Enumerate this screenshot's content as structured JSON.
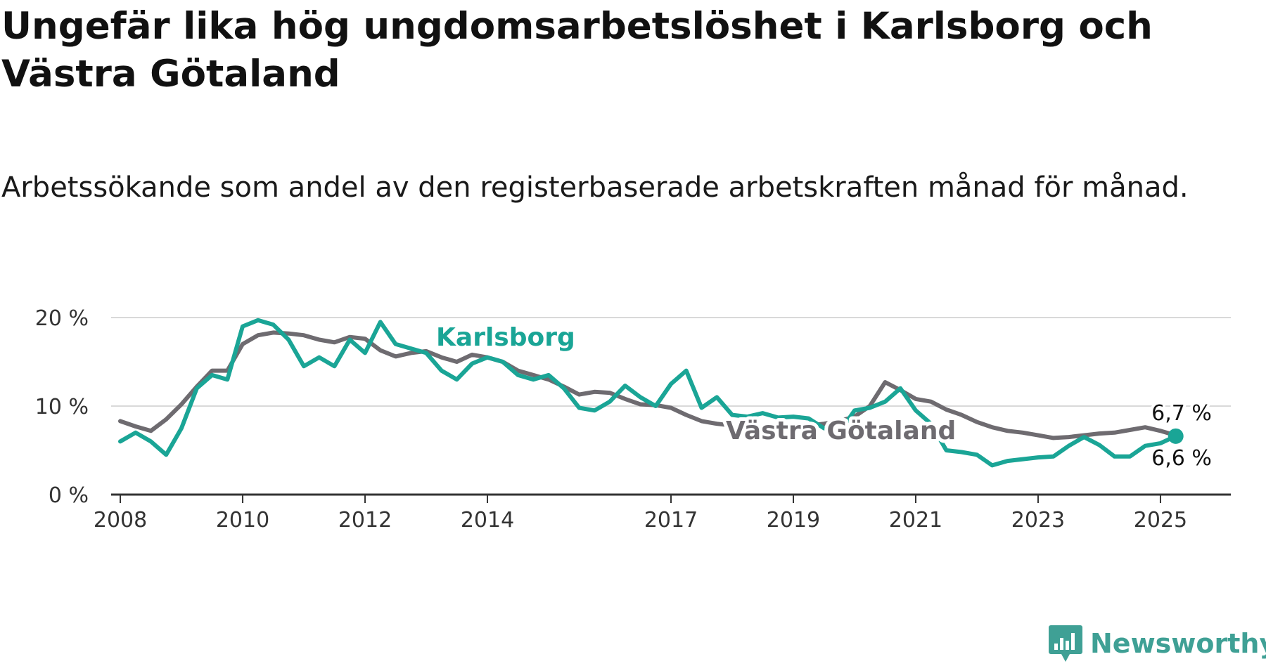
{
  "title": "Ungefär lika hög ungdomsarbetslöshet i Karlsborg och Västra Götaland",
  "subtitle": "Arbetssökande som andel av den registerbaserade arbetskraften månad för månad.",
  "brand": {
    "name": "Newsworthy",
    "color": "#3fa095",
    "icon": "bar-chart-icon"
  },
  "colors": {
    "karlsborg": "#1aa596",
    "vastra_gotaland": "#6e6b70",
    "grid": "#d9d9d9",
    "axis": "#333333"
  },
  "chart_data": {
    "type": "line",
    "title": "Ungefär lika hög ungdomsarbetslöshet i Karlsborg och Västra Götaland",
    "subtitle": "Arbetssökande som andel av den registerbaserade arbetskraften månad för månad.",
    "xlabel": "",
    "ylabel": "",
    "ylim": [
      0,
      20
    ],
    "yticks": [
      0,
      10,
      20
    ],
    "ytick_labels": [
      "0 %",
      "10 %",
      "20 %"
    ],
    "xticks": [
      2008,
      2010,
      2012,
      2014,
      2017,
      2019,
      2021,
      2023,
      2025
    ],
    "xtick_labels": [
      "2008",
      "2010",
      "2012",
      "2014",
      "2017",
      "2019",
      "2021",
      "2023",
      "2025"
    ],
    "grid": true,
    "legend": "inline labels",
    "series": [
      {
        "name": "Västra Götaland",
        "color": "#6e6b70",
        "end_label": "6,7 %",
        "points": [
          [
            2008.0,
            8.3
          ],
          [
            2008.25,
            7.7
          ],
          [
            2008.5,
            7.2
          ],
          [
            2008.75,
            8.5
          ],
          [
            2009.0,
            10.2
          ],
          [
            2009.25,
            12.2
          ],
          [
            2009.5,
            14.0
          ],
          [
            2009.75,
            14.0
          ],
          [
            2010.0,
            17.0
          ],
          [
            2010.25,
            18.0
          ],
          [
            2010.5,
            18.3
          ],
          [
            2010.75,
            18.2
          ],
          [
            2011.0,
            18.0
          ],
          [
            2011.25,
            17.5
          ],
          [
            2011.5,
            17.2
          ],
          [
            2011.75,
            17.8
          ],
          [
            2012.0,
            17.6
          ],
          [
            2012.25,
            16.3
          ],
          [
            2012.5,
            15.6
          ],
          [
            2012.75,
            16.0
          ],
          [
            2013.0,
            16.2
          ],
          [
            2013.25,
            15.5
          ],
          [
            2013.5,
            15.0
          ],
          [
            2013.75,
            15.8
          ],
          [
            2014.0,
            15.5
          ],
          [
            2014.25,
            15.0
          ],
          [
            2014.5,
            14.0
          ],
          [
            2014.75,
            13.5
          ],
          [
            2015.0,
            13.0
          ],
          [
            2015.25,
            12.2
          ],
          [
            2015.5,
            11.3
          ],
          [
            2015.75,
            11.6
          ],
          [
            2016.0,
            11.5
          ],
          [
            2016.25,
            10.8
          ],
          [
            2016.5,
            10.2
          ],
          [
            2016.75,
            10.1
          ],
          [
            2017.0,
            9.8
          ],
          [
            2017.25,
            9.0
          ],
          [
            2017.5,
            8.3
          ],
          [
            2017.75,
            8.0
          ],
          [
            2018.0,
            7.8
          ],
          [
            2018.25,
            7.5
          ],
          [
            2018.5,
            7.5
          ],
          [
            2018.75,
            7.6
          ],
          [
            2019.0,
            7.7
          ],
          [
            2019.25,
            7.8
          ],
          [
            2019.5,
            8.0
          ],
          [
            2019.75,
            8.3
          ],
          [
            2020.0,
            8.8
          ],
          [
            2020.25,
            10.0
          ],
          [
            2020.5,
            12.7
          ],
          [
            2020.75,
            11.8
          ],
          [
            2021.0,
            10.8
          ],
          [
            2021.25,
            10.5
          ],
          [
            2021.5,
            9.6
          ],
          [
            2021.75,
            9.0
          ],
          [
            2022.0,
            8.2
          ],
          [
            2022.25,
            7.6
          ],
          [
            2022.5,
            7.2
          ],
          [
            2022.75,
            7.0
          ],
          [
            2023.0,
            6.7
          ],
          [
            2023.25,
            6.4
          ],
          [
            2023.5,
            6.5
          ],
          [
            2023.75,
            6.7
          ],
          [
            2024.0,
            6.9
          ],
          [
            2024.25,
            7.0
          ],
          [
            2024.5,
            7.3
          ],
          [
            2024.75,
            7.6
          ],
          [
            2025.0,
            7.2
          ],
          [
            2025.25,
            6.7
          ]
        ]
      },
      {
        "name": "Karlsborg",
        "color": "#1aa596",
        "end_label": "6,6 %",
        "points": [
          [
            2008.0,
            6.0
          ],
          [
            2008.25,
            7.0
          ],
          [
            2008.5,
            6.0
          ],
          [
            2008.75,
            4.5
          ],
          [
            2009.0,
            7.5
          ],
          [
            2009.25,
            12.0
          ],
          [
            2009.5,
            13.5
          ],
          [
            2009.75,
            13.0
          ],
          [
            2010.0,
            19.0
          ],
          [
            2010.25,
            19.7
          ],
          [
            2010.5,
            19.2
          ],
          [
            2010.75,
            17.5
          ],
          [
            2011.0,
            14.5
          ],
          [
            2011.25,
            15.5
          ],
          [
            2011.5,
            14.5
          ],
          [
            2011.75,
            17.5
          ],
          [
            2012.0,
            16.0
          ],
          [
            2012.25,
            19.5
          ],
          [
            2012.5,
            17.0
          ],
          [
            2012.75,
            16.5
          ],
          [
            2013.0,
            16.0
          ],
          [
            2013.25,
            14.0
          ],
          [
            2013.5,
            13.0
          ],
          [
            2013.75,
            14.8
          ],
          [
            2014.0,
            15.5
          ],
          [
            2014.25,
            15.0
          ],
          [
            2014.5,
            13.5
          ],
          [
            2014.75,
            13.0
          ],
          [
            2015.0,
            13.5
          ],
          [
            2015.25,
            12.0
          ],
          [
            2015.5,
            9.8
          ],
          [
            2015.75,
            9.5
          ],
          [
            2016.0,
            10.5
          ],
          [
            2016.25,
            12.3
          ],
          [
            2016.5,
            11.0
          ],
          [
            2016.75,
            10.0
          ],
          [
            2017.0,
            12.5
          ],
          [
            2017.25,
            14.0
          ],
          [
            2017.5,
            9.8
          ],
          [
            2017.75,
            11.0
          ],
          [
            2018.0,
            9.0
          ],
          [
            2018.25,
            8.8
          ],
          [
            2018.5,
            9.2
          ],
          [
            2018.75,
            8.7
          ],
          [
            2019.0,
            8.8
          ],
          [
            2019.25,
            8.6
          ],
          [
            2019.5,
            7.5
          ],
          [
            2019.75,
            7.0
          ],
          [
            2020.0,
            9.5
          ],
          [
            2020.25,
            9.8
          ],
          [
            2020.5,
            10.5
          ],
          [
            2020.75,
            12.0
          ],
          [
            2021.0,
            9.5
          ],
          [
            2021.25,
            8.0
          ],
          [
            2021.5,
            5.0
          ],
          [
            2021.75,
            4.8
          ],
          [
            2022.0,
            4.5
          ],
          [
            2022.25,
            3.3
          ],
          [
            2022.5,
            3.8
          ],
          [
            2022.75,
            4.0
          ],
          [
            2023.0,
            4.2
          ],
          [
            2023.25,
            4.3
          ],
          [
            2023.5,
            5.5
          ],
          [
            2023.75,
            6.5
          ],
          [
            2024.0,
            5.6
          ],
          [
            2024.25,
            4.3
          ],
          [
            2024.5,
            4.3
          ],
          [
            2024.75,
            5.5
          ],
          [
            2025.0,
            5.8
          ],
          [
            2025.25,
            6.6
          ]
        ]
      }
    ]
  }
}
